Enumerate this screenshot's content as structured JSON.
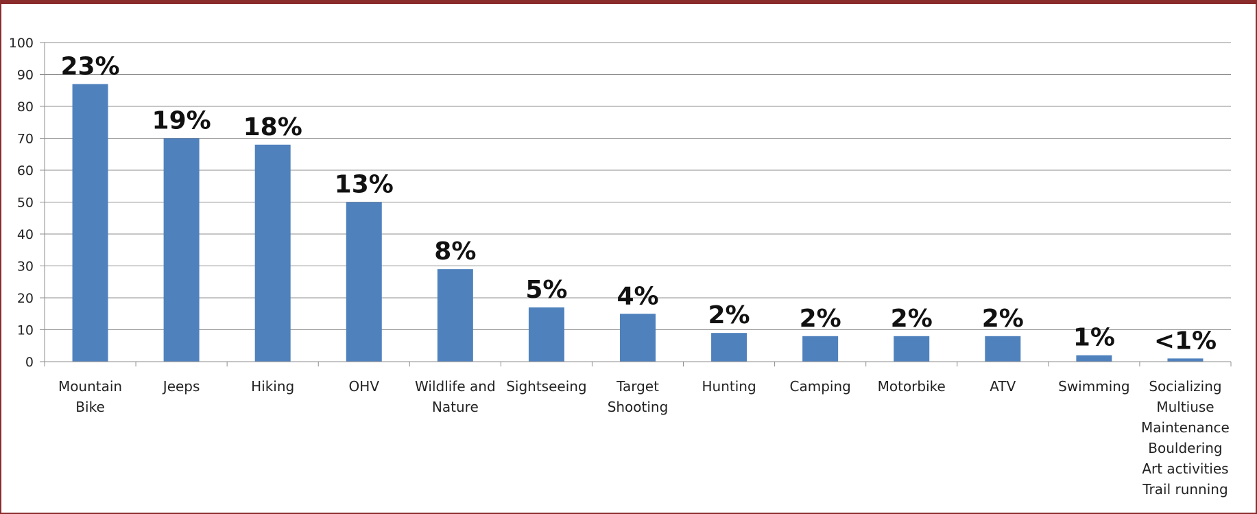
{
  "chart_data": {
    "type": "bar",
    "title": "",
    "xlabel": "",
    "ylabel": "",
    "ylim": [
      0,
      100
    ],
    "yticks": [
      0,
      10,
      20,
      30,
      40,
      50,
      60,
      70,
      80,
      90,
      100
    ],
    "grid": true,
    "legend": "none",
    "bar_color": "#4f81bd",
    "categories": [
      [
        "Mountain",
        "Bike"
      ],
      [
        "Jeeps"
      ],
      [
        "Hiking"
      ],
      [
        "OHV"
      ],
      [
        "Wildlife and",
        "Nature"
      ],
      [
        "Sightseeing"
      ],
      [
        "Target",
        "Shooting"
      ],
      [
        "Hunting"
      ],
      [
        "Camping"
      ],
      [
        "Motorbike"
      ],
      [
        "ATV"
      ],
      [
        "Swimming"
      ],
      [
        "Socializing",
        "Multiuse",
        "Maintenance",
        "Bouldering",
        "Art activities",
        "Trail running"
      ]
    ],
    "values": [
      87,
      70,
      68,
      50,
      29,
      17,
      15,
      9,
      8,
      8,
      8,
      2,
      1
    ],
    "data_labels": [
      "23%",
      "19%",
      "18%",
      "13%",
      "8%",
      "5%",
      "4%",
      "2%",
      "2%",
      "2%",
      "2%",
      "1%",
      "<1%"
    ]
  }
}
